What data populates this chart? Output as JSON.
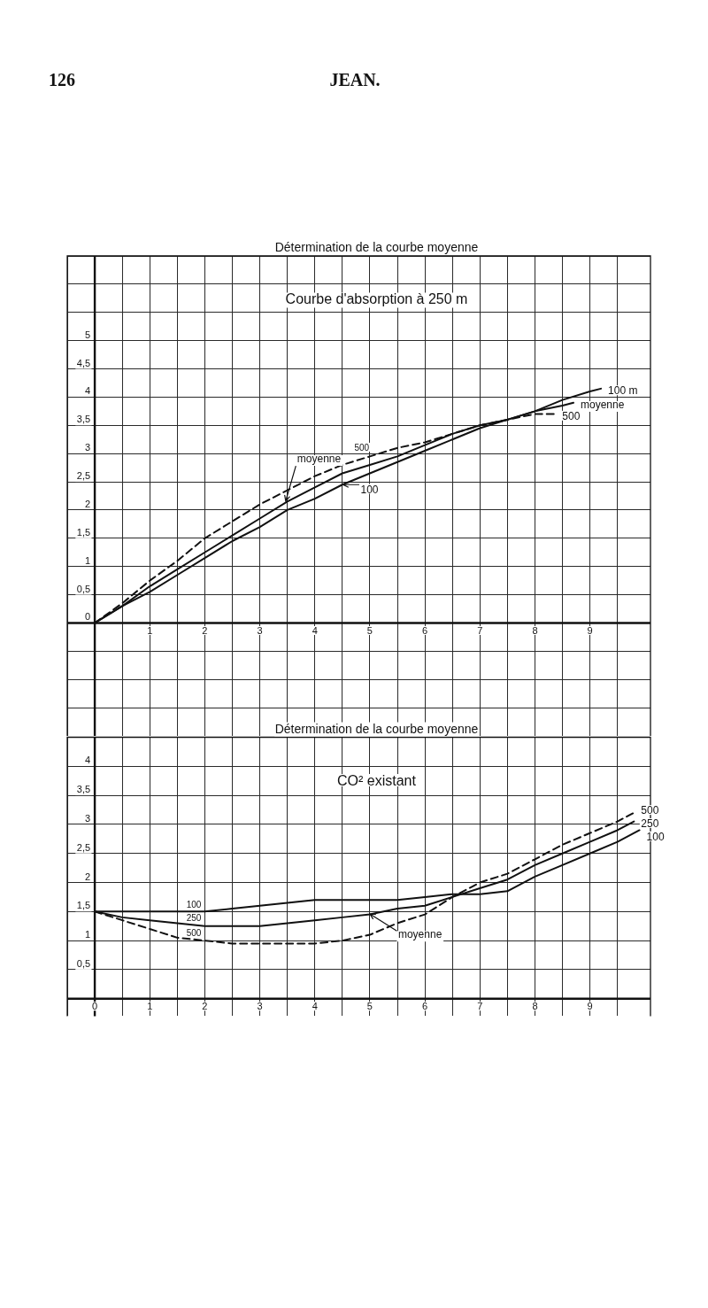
{
  "chart_data": [
    {
      "type": "line",
      "title": "Détermination de la courbe moyenne",
      "subtitle": "Courbe d'absorption à 250 m",
      "annotations": [
        "126",
        "JEAN.",
        {
          "text": "moyenne",
          "x": 3.47,
          "y": 2.16
        },
        {
          "text": "500",
          "x": 8.4,
          "y": 3.7
        },
        {
          "text": "100",
          "x": 4.51,
          "y": 2.45
        }
      ],
      "series": [
        {
          "name": "100 m",
          "color": "#111111",
          "x": [
            0,
            0.5,
            1,
            1.5,
            2,
            2.5,
            3,
            3.5,
            4,
            4.5,
            5,
            5.5,
            6,
            6.5,
            7,
            7.5,
            8,
            8.5,
            9,
            9.2
          ],
          "values": [
            0,
            0.3,
            0.55,
            0.85,
            1.15,
            1.45,
            1.7,
            2,
            2.2,
            2.45,
            2.65,
            2.85,
            3.05,
            3.25,
            3.45,
            3.6,
            3.75,
            3.95,
            4.1,
            4.15
          ]
        },
        {
          "name": "moyenne",
          "color": "#111111",
          "x": [
            0,
            0.5,
            1,
            1.5,
            2,
            2.5,
            3,
            3.5,
            4,
            4.5,
            5,
            5.5,
            6,
            6.5,
            7,
            7.5,
            8,
            8.5,
            8.7
          ],
          "values": [
            0,
            0.3,
            0.65,
            0.95,
            1.25,
            1.55,
            1.85,
            2.15,
            2.4,
            2.65,
            2.8,
            2.95,
            3.15,
            3.35,
            3.5,
            3.6,
            3.75,
            3.85,
            3.9
          ]
        },
        {
          "name": "500",
          "color": "#111111",
          "line_style": "dashed",
          "x": [
            0,
            0.5,
            1,
            1.5,
            2,
            2.5,
            3,
            3.5,
            4,
            4.5,
            5,
            5.5,
            6,
            6.5,
            7,
            7.5,
            8,
            8.4
          ],
          "values": [
            0,
            0.35,
            0.75,
            1.1,
            1.5,
            1.8,
            2.1,
            2.35,
            2.6,
            2.8,
            2.95,
            3.1,
            3.2,
            3.35,
            3.5,
            3.6,
            3.7,
            3.7
          ]
        }
      ],
      "xlim": [
        -0.5,
        10.1
      ],
      "xticks": [
        {
          "value": -0.5,
          "label": null
        },
        {
          "value": 0,
          "label": null
        },
        {
          "value": 0.5,
          "label": null
        },
        1,
        {
          "value": 1.5,
          "label": null
        },
        2,
        {
          "value": 2.5,
          "label": null
        },
        3,
        {
          "value": 3.5,
          "label": null
        },
        4,
        {
          "value": 4.5,
          "label": null
        },
        5,
        {
          "value": 5.5,
          "label": null
        },
        6,
        {
          "value": 6.5,
          "label": null
        },
        7,
        {
          "value": 7.5,
          "label": null
        },
        8,
        {
          "value": 8.5,
          "label": null
        },
        9,
        {
          "value": 9.5,
          "label": null
        }
      ],
      "ylim": [
        -2,
        6.5
      ],
      "yticks": [
        {
          "value": -1.5,
          "label": null
        },
        {
          "value": -1,
          "label": null
        },
        {
          "value": -0.5,
          "label": null
        },
        0,
        {
          "value": 0.5,
          "label": "0,5"
        },
        1,
        {
          "value": 1.5,
          "label": "1,5"
        },
        2,
        {
          "value": 2.5,
          "label": "2,5"
        },
        3,
        {
          "value": 3.5,
          "label": "3,5"
        },
        4,
        {
          "value": 4.5,
          "label": "4,5"
        },
        5,
        {
          "value": 5.5,
          "label": null
        },
        {
          "value": 6,
          "label": null
        },
        {
          "value": 6.5,
          "label": null
        }
      ],
      "grid": true
    },
    {
      "type": "line",
      "title": "Détermination de la courbe moyenne",
      "subtitle": "CO² existant",
      "annotations": [
        {
          "text": "500",
          "x": 9.8,
          "y": 3.2
        },
        {
          "text": "250",
          "x": 9.8,
          "y": 3.05
        },
        {
          "text": "100",
          "x": 9.9,
          "y": 2.9
        },
        {
          "text": "moyenne",
          "x": 5,
          "y": 1.46
        }
      ],
      "series": [
        {
          "name": "100",
          "color": "#111111",
          "x": [
            0,
            0.5,
            1,
            1.5,
            2,
            2.5,
            3,
            3.5,
            4,
            4.5,
            5,
            5.5,
            6,
            6.5,
            7,
            7.5,
            8,
            8.5,
            9,
            9.5,
            9.9
          ],
          "values": [
            1.5,
            1.5,
            1.5,
            1.5,
            1.5,
            1.55,
            1.6,
            1.65,
            1.7,
            1.7,
            1.7,
            1.7,
            1.75,
            1.8,
            1.8,
            1.85,
            2.1,
            2.3,
            2.5,
            2.7,
            2.9
          ]
        },
        {
          "name": "250",
          "color": "#111111",
          "x": [
            0,
            0.5,
            1,
            1.5,
            2,
            2.5,
            3,
            3.5,
            4,
            4.5,
            5,
            5.5,
            6,
            6.5,
            7,
            7.5,
            8,
            8.5,
            9,
            9.5,
            9.8
          ],
          "values": [
            1.5,
            1.4,
            1.35,
            1.3,
            1.25,
            1.25,
            1.25,
            1.3,
            1.35,
            1.4,
            1.45,
            1.55,
            1.6,
            1.75,
            1.9,
            2.05,
            2.3,
            2.5,
            2.7,
            2.9,
            3.05
          ]
        },
        {
          "name": "500",
          "color": "#111111",
          "line_style": "dashed",
          "x": [
            0,
            0.5,
            1,
            1.5,
            2,
            2.5,
            3,
            3.5,
            4,
            4.5,
            5,
            5.5,
            6,
            6.5,
            7,
            7.5,
            8,
            8.5,
            9,
            9.5,
            9.8
          ],
          "values": [
            1.5,
            1.35,
            1.2,
            1.05,
            1,
            0.95,
            0.95,
            0.95,
            0.95,
            1,
            1.1,
            1.3,
            1.45,
            1.75,
            2,
            2.15,
            2.4,
            2.65,
            2.85,
            3.05,
            3.2
          ]
        }
      ],
      "xlim": [
        -0.5,
        10.1
      ],
      "xticks": [
        {
          "value": -0.5,
          "label": null
        },
        0,
        {
          "value": 0.5,
          "label": null
        },
        1,
        {
          "value": 1.5,
          "label": null
        },
        2,
        {
          "value": 2.5,
          "label": null
        },
        3,
        {
          "value": 3.5,
          "label": null
        },
        4,
        {
          "value": 4.5,
          "label": null
        },
        5,
        {
          "value": 5.5,
          "label": null
        },
        6,
        {
          "value": 6.5,
          "label": null
        },
        7,
        {
          "value": 7.5,
          "label": null
        },
        8,
        {
          "value": 8.5,
          "label": null
        },
        9,
        {
          "value": 9.5,
          "label": null
        }
      ],
      "ylim": [
        -0.3,
        4.5
      ],
      "yticks": [
        {
          "value": 0,
          "label": null
        },
        {
          "value": 0.5,
          "label": "0,5"
        },
        1,
        {
          "value": 1.5,
          "label": "1,5"
        },
        2,
        {
          "value": 2.5,
          "label": "2,5"
        },
        3,
        {
          "value": 3.5,
          "label": "3,5"
        },
        4,
        {
          "value": 4.5,
          "label": null
        }
      ],
      "grid": true
    }
  ]
}
